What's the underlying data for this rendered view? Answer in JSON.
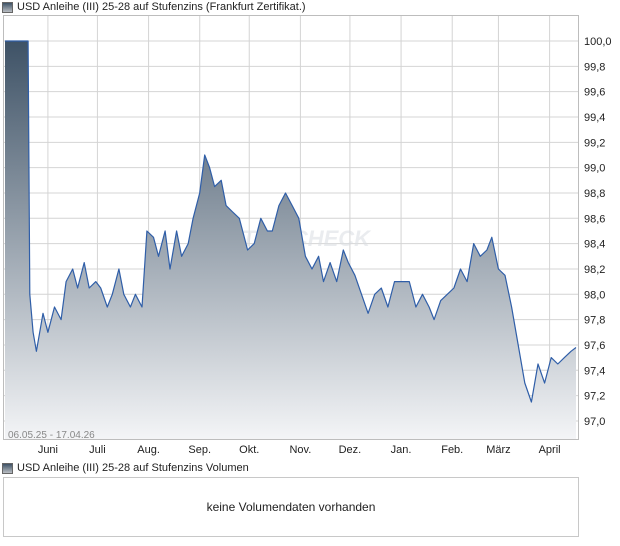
{
  "colors": {
    "line": "#2f5ea8",
    "fill_top": "#3e5266",
    "fill_bottom": "#f4f5f7",
    "grid": "#d4d4d4",
    "border": "#bdbdbd",
    "legend_top": "#3e5266",
    "legend_bottom": "#b9bdc2"
  },
  "watermark": "AKTIENCHECK",
  "chart_data": {
    "type": "area",
    "title": "USD Anleihe (III) 25-28 auf Stufenzins (Frankfurt Zertifikat.)",
    "date_range": "06.05.25 - 17.04.26",
    "xlabel": "",
    "ylabel": "",
    "ylim": [
      96.9,
      100.15
    ],
    "y_ticks": [
      "100,0",
      "99,8",
      "99,6",
      "99,4",
      "99,2",
      "99,0",
      "98,8",
      "98,6",
      "98,4",
      "98,2",
      "98,0",
      "97,8",
      "97,6",
      "97,4",
      "97,2",
      "97,0"
    ],
    "x_ticks": [
      {
        "label": "Juni",
        "date": "2025-06-01"
      },
      {
        "label": "Juli",
        "date": "2025-07-01"
      },
      {
        "label": "Aug.",
        "date": "2025-08-01"
      },
      {
        "label": "Sep.",
        "date": "2025-09-01"
      },
      {
        "label": "Okt.",
        "date": "2025-10-01"
      },
      {
        "label": "Nov.",
        "date": "2025-11-01"
      },
      {
        "label": "Dez.",
        "date": "2025-12-01"
      },
      {
        "label": "Jan.",
        "date": "2026-01-01"
      },
      {
        "label": "Feb.",
        "date": "2026-02-01"
      },
      {
        "label": "März",
        "date": "2026-03-01"
      },
      {
        "label": "April",
        "date": "2026-04-01"
      }
    ],
    "grid": true,
    "y_axis_side": "right",
    "series": [
      {
        "name": "USD Anleihe (III) 25-28 auf Stufenzins",
        "points": [
          {
            "x": "2025-05-06",
            "y": 100.0
          },
          {
            "x": "2025-05-20",
            "y": 100.0
          },
          {
            "x": "2025-05-21",
            "y": 98.0
          },
          {
            "x": "2025-05-23",
            "y": 97.7
          },
          {
            "x": "2025-05-25",
            "y": 97.55
          },
          {
            "x": "2025-05-29",
            "y": 97.85
          },
          {
            "x": "2025-06-01",
            "y": 97.7
          },
          {
            "x": "2025-06-05",
            "y": 97.9
          },
          {
            "x": "2025-06-09",
            "y": 97.8
          },
          {
            "x": "2025-06-12",
            "y": 98.1
          },
          {
            "x": "2025-06-16",
            "y": 98.2
          },
          {
            "x": "2025-06-19",
            "y": 98.05
          },
          {
            "x": "2025-06-23",
            "y": 98.25
          },
          {
            "x": "2025-06-26",
            "y": 98.05
          },
          {
            "x": "2025-06-30",
            "y": 98.1
          },
          {
            "x": "2025-07-03",
            "y": 98.05
          },
          {
            "x": "2025-07-07",
            "y": 97.9
          },
          {
            "x": "2025-07-10",
            "y": 98.0
          },
          {
            "x": "2025-07-14",
            "y": 98.2
          },
          {
            "x": "2025-07-17",
            "y": 98.0
          },
          {
            "x": "2025-07-21",
            "y": 97.9
          },
          {
            "x": "2025-07-24",
            "y": 98.0
          },
          {
            "x": "2025-07-28",
            "y": 97.9
          },
          {
            "x": "2025-07-31",
            "y": 98.5
          },
          {
            "x": "2025-08-04",
            "y": 98.45
          },
          {
            "x": "2025-08-07",
            "y": 98.3
          },
          {
            "x": "2025-08-11",
            "y": 98.5
          },
          {
            "x": "2025-08-14",
            "y": 98.2
          },
          {
            "x": "2025-08-18",
            "y": 98.5
          },
          {
            "x": "2025-08-21",
            "y": 98.3
          },
          {
            "x": "2025-08-25",
            "y": 98.4
          },
          {
            "x": "2025-08-28",
            "y": 98.6
          },
          {
            "x": "2025-09-01",
            "y": 98.8
          },
          {
            "x": "2025-09-04",
            "y": 99.1
          },
          {
            "x": "2025-09-07",
            "y": 99.0
          },
          {
            "x": "2025-09-10",
            "y": 98.85
          },
          {
            "x": "2025-09-14",
            "y": 98.9
          },
          {
            "x": "2025-09-17",
            "y": 98.7
          },
          {
            "x": "2025-09-21",
            "y": 98.65
          },
          {
            "x": "2025-09-25",
            "y": 98.6
          },
          {
            "x": "2025-09-30",
            "y": 98.35
          },
          {
            "x": "2025-10-04",
            "y": 98.4
          },
          {
            "x": "2025-10-08",
            "y": 98.6
          },
          {
            "x": "2025-10-12",
            "y": 98.5
          },
          {
            "x": "2025-10-15",
            "y": 98.5
          },
          {
            "x": "2025-10-19",
            "y": 98.7
          },
          {
            "x": "2025-10-23",
            "y": 98.8
          },
          {
            "x": "2025-10-27",
            "y": 98.7
          },
          {
            "x": "2025-10-31",
            "y": 98.6
          },
          {
            "x": "2025-11-04",
            "y": 98.3
          },
          {
            "x": "2025-11-08",
            "y": 98.2
          },
          {
            "x": "2025-11-12",
            "y": 98.3
          },
          {
            "x": "2025-11-15",
            "y": 98.1
          },
          {
            "x": "2025-11-19",
            "y": 98.25
          },
          {
            "x": "2025-11-23",
            "y": 98.1
          },
          {
            "x": "2025-11-27",
            "y": 98.35
          },
          {
            "x": "2025-11-30",
            "y": 98.25
          },
          {
            "x": "2025-12-04",
            "y": 98.15
          },
          {
            "x": "2025-12-08",
            "y": 98.0
          },
          {
            "x": "2025-12-12",
            "y": 97.85
          },
          {
            "x": "2025-12-16",
            "y": 98.0
          },
          {
            "x": "2025-12-20",
            "y": 98.05
          },
          {
            "x": "2025-12-24",
            "y": 97.9
          },
          {
            "x": "2025-12-28",
            "y": 98.1
          },
          {
            "x": "2026-01-02",
            "y": 98.1
          },
          {
            "x": "2026-01-06",
            "y": 98.1
          },
          {
            "x": "2026-01-10",
            "y": 97.9
          },
          {
            "x": "2026-01-14",
            "y": 98.0
          },
          {
            "x": "2026-01-18",
            "y": 97.9
          },
          {
            "x": "2026-01-21",
            "y": 97.8
          },
          {
            "x": "2026-01-25",
            "y": 97.95
          },
          {
            "x": "2026-01-29",
            "y": 98.0
          },
          {
            "x": "2026-02-02",
            "y": 98.05
          },
          {
            "x": "2026-02-06",
            "y": 98.2
          },
          {
            "x": "2026-02-10",
            "y": 98.1
          },
          {
            "x": "2026-02-14",
            "y": 98.4
          },
          {
            "x": "2026-02-18",
            "y": 98.3
          },
          {
            "x": "2026-02-22",
            "y": 98.35
          },
          {
            "x": "2026-02-25",
            "y": 98.45
          },
          {
            "x": "2026-03-01",
            "y": 98.2
          },
          {
            "x": "2026-03-05",
            "y": 98.15
          },
          {
            "x": "2026-03-09",
            "y": 97.9
          },
          {
            "x": "2026-03-13",
            "y": 97.6
          },
          {
            "x": "2026-03-17",
            "y": 97.3
          },
          {
            "x": "2026-03-21",
            "y": 97.15
          },
          {
            "x": "2026-03-25",
            "y": 97.45
          },
          {
            "x": "2026-03-29",
            "y": 97.3
          },
          {
            "x": "2026-04-02",
            "y": 97.5
          },
          {
            "x": "2026-04-06",
            "y": 97.45
          },
          {
            "x": "2026-04-10",
            "y": 97.5
          },
          {
            "x": "2026-04-14",
            "y": 97.55
          },
          {
            "x": "2026-04-17",
            "y": 97.58
          }
        ]
      }
    ]
  },
  "volume_panel": {
    "legend": "USD Anleihe (III) 25-28 auf Stufenzins Volumen",
    "message": "keine Volumendaten vorhanden"
  }
}
